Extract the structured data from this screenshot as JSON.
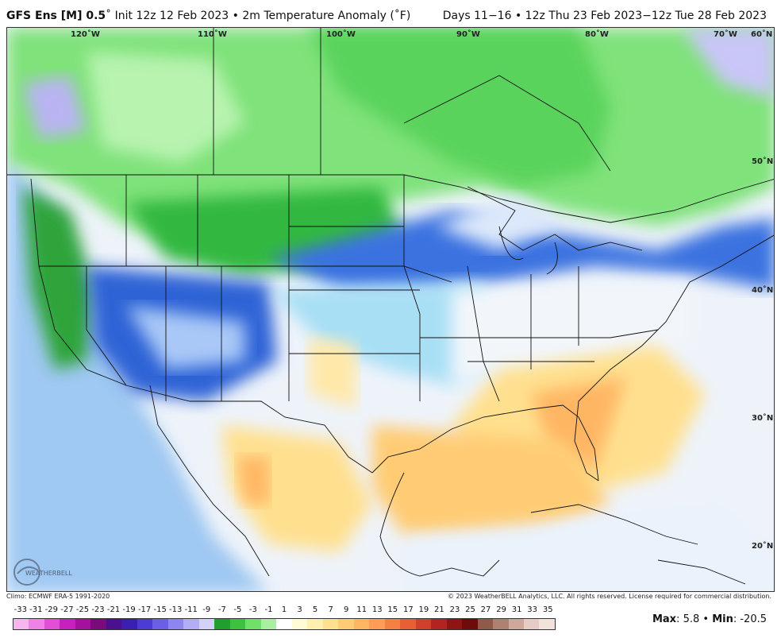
{
  "header": {
    "model": "GFS Ens [M] 0.5",
    "init": "Init 12z 12 Feb 2023",
    "field": "2m Temperature Anomaly (˚F)",
    "valid": "Days 11−16 • 12z Thu 23 Feb 2023−12z Tue 28 Feb 2023"
  },
  "map": {
    "longitudes": [
      "120˚W",
      "110˚W",
      "100˚W",
      "90˚W",
      "80˚W",
      "70˚W",
      "60˚N"
    ],
    "latitudes": [
      "50˚N",
      "40˚N",
      "30˚N",
      "20˚N"
    ],
    "regions": [
      {
        "name": "canada-cold",
        "anomaly": -9
      },
      {
        "name": "northern-plains",
        "anomaly": -7
      },
      {
        "name": "rockies-great-basin",
        "anomaly": -7
      },
      {
        "name": "west-coast",
        "anomaly": -9
      },
      {
        "name": "midwest-great-lakes",
        "anomaly": -3
      },
      {
        "name": "southeast-warm",
        "anomaly": 5
      },
      {
        "name": "florida-warm",
        "anomaly": 7
      },
      {
        "name": "gulf-of-mexico",
        "anomaly": 3
      },
      {
        "name": "mexico-west",
        "anomaly": 3
      }
    ]
  },
  "footer": {
    "climo": "Climo: ECMWF ERA-5 1991-2020",
    "copyright": "© 2023 WeatherBELL Analytics, LLC. All rights reserved. License required for commercial distribution."
  },
  "logo_text": "WEATHERBELL",
  "colorbar": {
    "labels": [
      "-33",
      "-31",
      "-29",
      "-27",
      "-25",
      "-23",
      "-21",
      "-19",
      "-17",
      "-15",
      "-13",
      "-11",
      "-9",
      "-7",
      "-5",
      "-3",
      "-1",
      "1",
      "3",
      "5",
      "7",
      "9",
      "11",
      "13",
      "15",
      "17",
      "19",
      "21",
      "23",
      "25",
      "27",
      "29",
      "31",
      "33",
      "35"
    ],
    "colors": [
      "#f7b6f0",
      "#ee82e6",
      "#e04fd6",
      "#c81fbf",
      "#a3119e",
      "#7a0b7a",
      "#4b0f8f",
      "#3a1fb0",
      "#4d3bd6",
      "#6a5fe6",
      "#8d86f0",
      "#b1aef6",
      "#d4d1fb",
      "#1e9f2e",
      "#3cc23e",
      "#6fe06a",
      "#a8f0a0",
      "#ffffff",
      "#fffbd6",
      "#fff0b0",
      "#ffe08f",
      "#ffcc75",
      "#ffb663",
      "#ff9c55",
      "#f57f45",
      "#e85f35",
      "#d1402a",
      "#b32320",
      "#8f1414",
      "#6e0c0c",
      "#8f5a4a",
      "#b08070",
      "#cfa89b",
      "#e6ccc4",
      "#f2e2dc"
    ]
  },
  "stats": {
    "max_label": "Max",
    "max": "5.8",
    "min_label": "Min",
    "min": "-20.5"
  }
}
